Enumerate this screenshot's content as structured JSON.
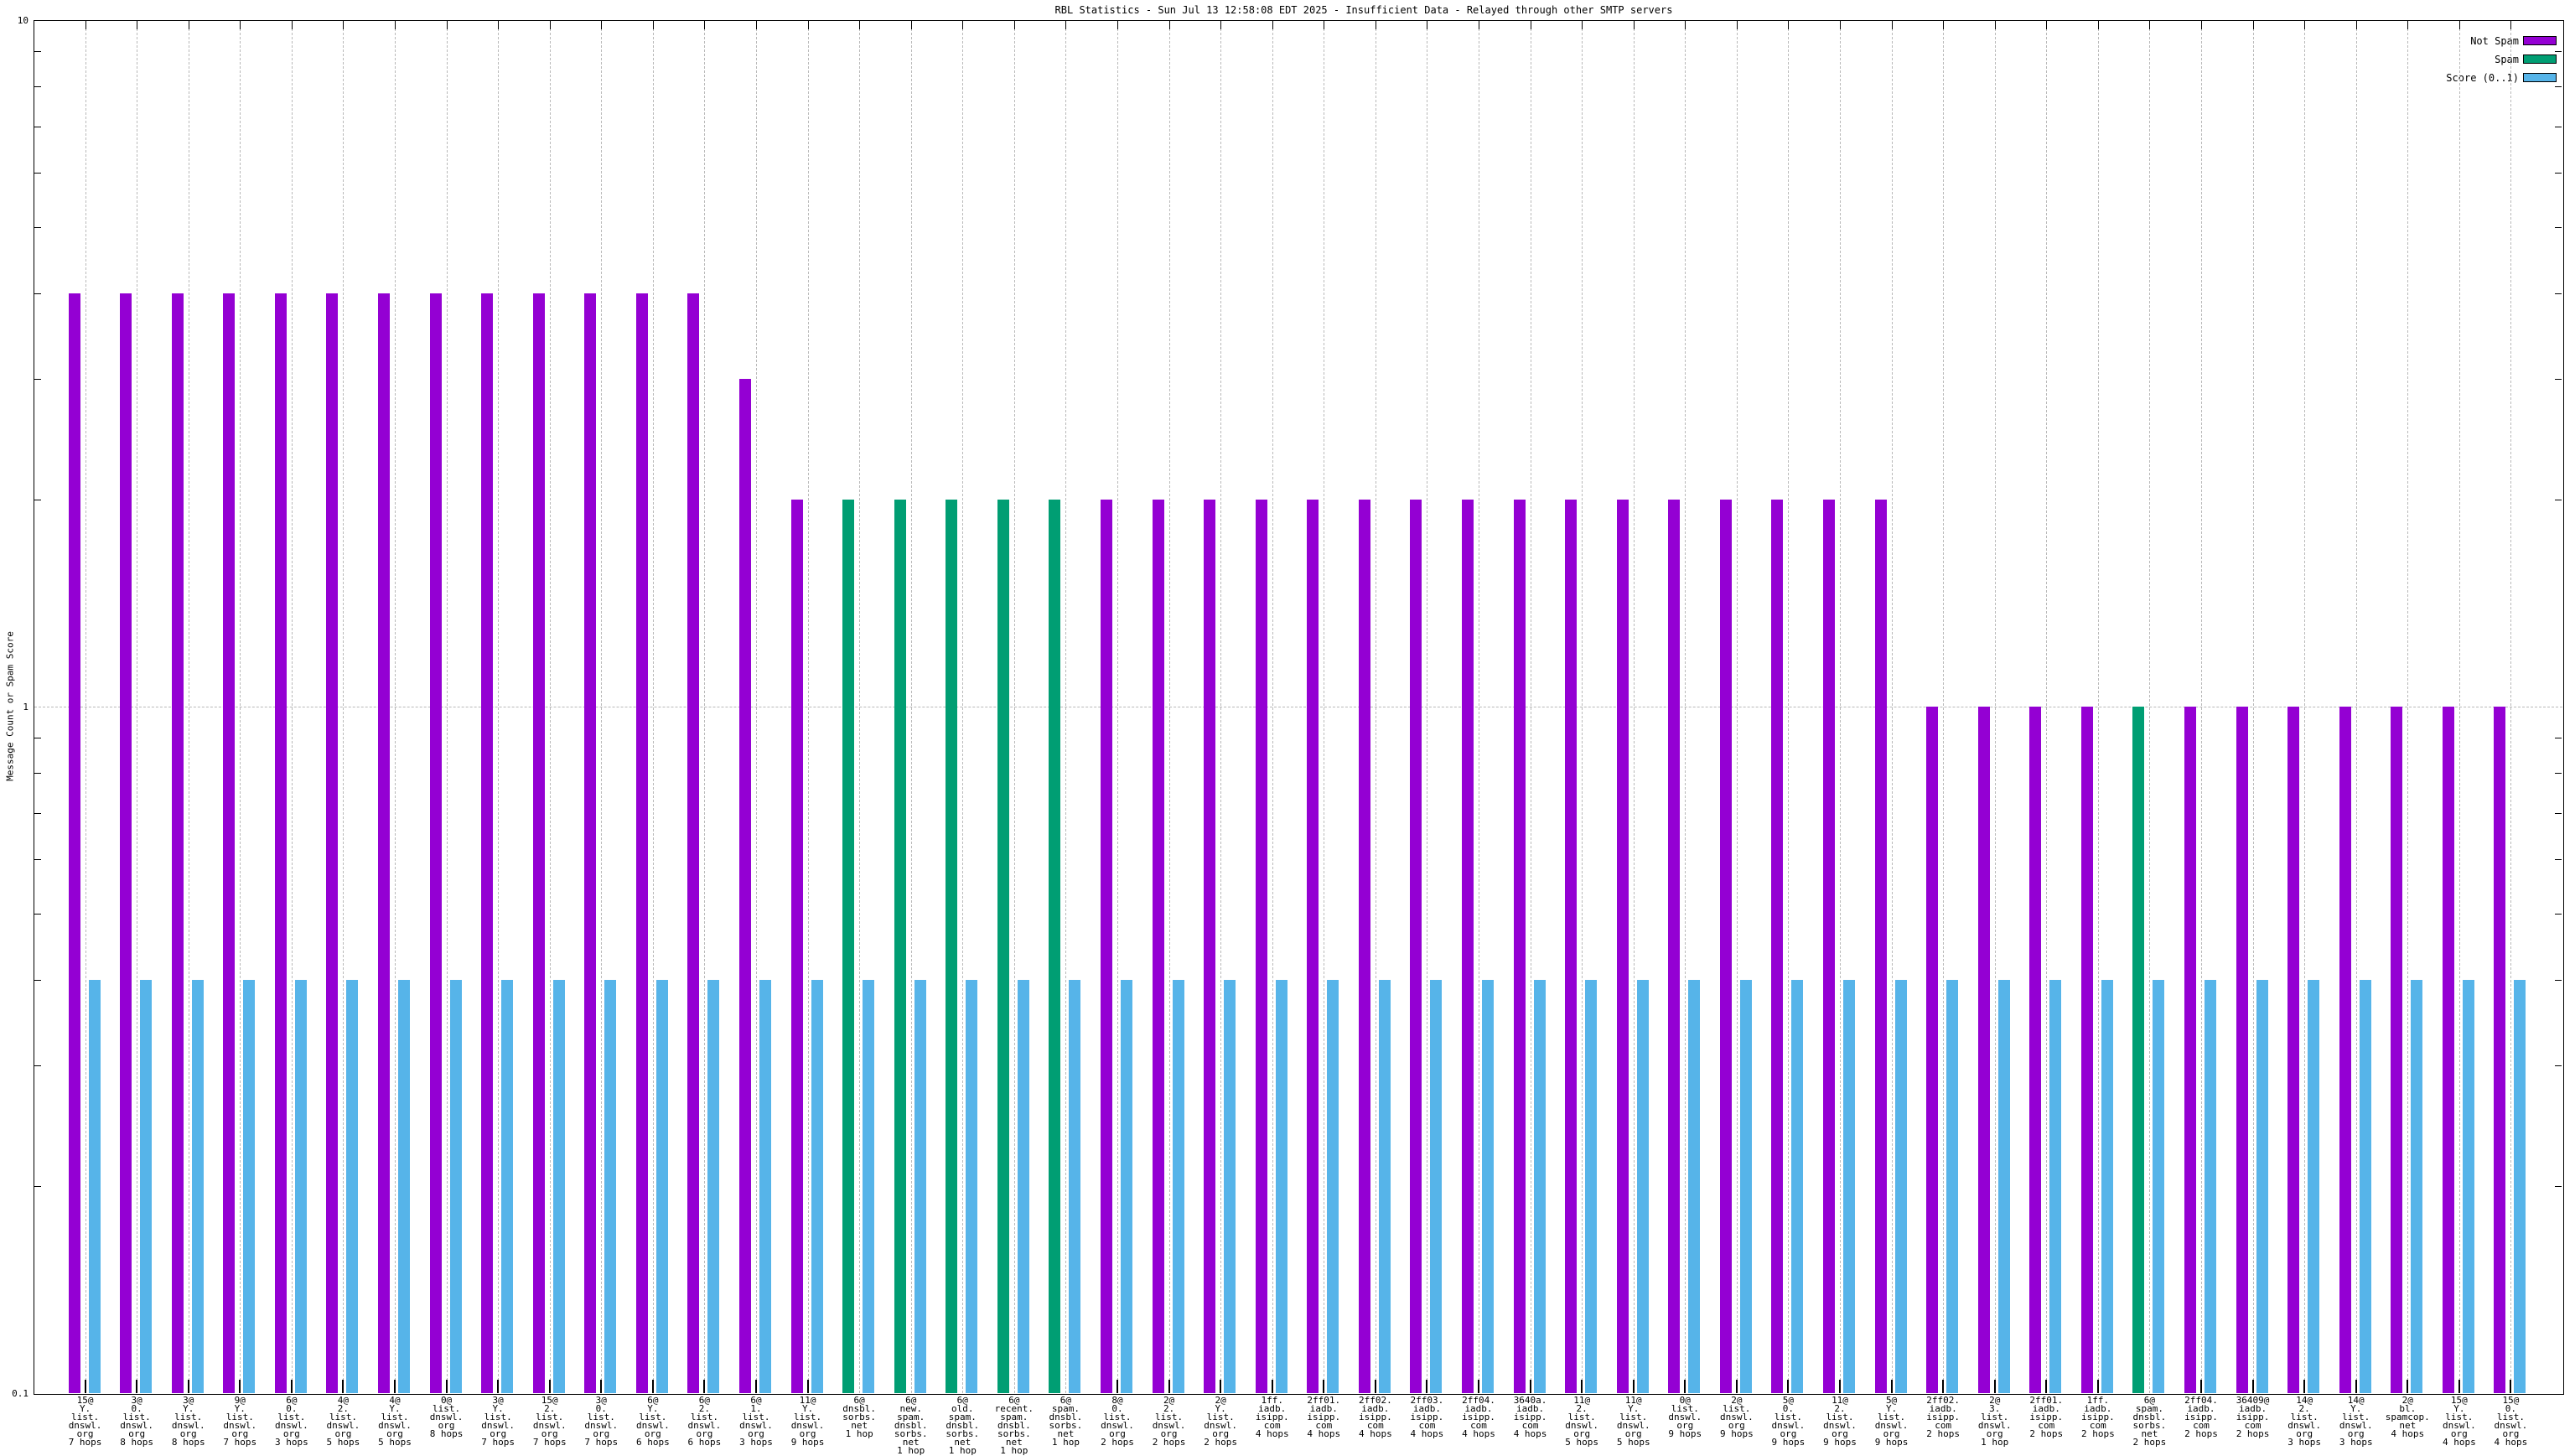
{
  "title": "RBL Statistics - Sun Jul 13 12:58:08 EDT 2025 - Insufficient Data - Relayed through other SMTP servers",
  "legend": [
    {
      "key": "notspam",
      "label": "Not Spam",
      "color": "#9400d3"
    },
    {
      "key": "spam",
      "label": "Spam",
      "color": "#009e73"
    },
    {
      "key": "score",
      "label": "Score (0..1)",
      "color": "#56b4e9"
    }
  ],
  "chart_data": {
    "type": "bar",
    "title": "RBL Statistics - Sun Jul 13 12:58:08 EDT 2025 - Insufficient Data - Relayed through other SMTP servers",
    "ylabel": "Message Count or Spam Score",
    "yscale": "log",
    "ylim": [
      0.1,
      10
    ],
    "ytick_labels": [
      "10",
      "1",
      "0.1"
    ],
    "grid": {
      "vertical_dashed_per_group": true,
      "horizontal_dashed_at": 1
    },
    "legend_position": "top-right",
    "colors": {
      "notspam": "#9400d3",
      "spam": "#009e73",
      "score": "#56b4e9",
      "grid": "#b9b9b9"
    },
    "series_names": [
      "Not Spam",
      "Spam",
      "Score (0..1)"
    ],
    "score_value_all_groups": 0.4,
    "groups": [
      {
        "label": "15@\nY.\nlist.\ndnswl.\norg\n7 hops",
        "type": "notspam",
        "count": 4,
        "score": 0.4
      },
      {
        "label": "3@\n0.\nlist.\ndnswl.\norg\n8 hops",
        "type": "notspam",
        "count": 4,
        "score": 0.4
      },
      {
        "label": "3@\nY.\nlist.\ndnswl.\norg\n8 hops",
        "type": "notspam",
        "count": 4,
        "score": 0.4
      },
      {
        "label": "9@\nY.\nlist.\ndnswl.\norg\n7 hops",
        "type": "notspam",
        "count": 4,
        "score": 0.4
      },
      {
        "label": "6@\n0.\nlist.\ndnswl.\norg\n3 hops",
        "type": "notspam",
        "count": 4,
        "score": 0.4
      },
      {
        "label": "4@\n2.\nlist.\ndnswl.\norg\n5 hops",
        "type": "notspam",
        "count": 4,
        "score": 0.4
      },
      {
        "label": "4@\nY.\nlist.\ndnswl.\norg\n5 hops",
        "type": "notspam",
        "count": 4,
        "score": 0.4
      },
      {
        "label": "0@\nlist.\ndnswl.\norg\n8 hops",
        "type": "notspam",
        "count": 4,
        "score": 0.4
      },
      {
        "label": "3@\nY.\nlist.\ndnswl.\norg\n7 hops",
        "type": "notspam",
        "count": 4,
        "score": 0.4
      },
      {
        "label": "15@\n2.\nlist.\ndnswl.\norg\n7 hops",
        "type": "notspam",
        "count": 4,
        "score": 0.4
      },
      {
        "label": "3@\n0.\nlist.\ndnswl.\norg\n7 hops",
        "type": "notspam",
        "count": 4,
        "score": 0.4
      },
      {
        "label": "6@\nY.\nlist.\ndnswl.\norg\n6 hops",
        "type": "notspam",
        "count": 4,
        "score": 0.4
      },
      {
        "label": "6@\n2.\nlist.\ndnswl.\norg\n6 hops",
        "type": "notspam",
        "count": 4,
        "score": 0.4
      },
      {
        "label": "6@\n1.\nlist.\ndnswl.\norg\n3 hops",
        "type": "notspam",
        "count": 3,
        "score": 0.4
      },
      {
        "label": "11@\nY.\nlist.\ndnswl.\norg\n9 hops",
        "type": "notspam",
        "count": 2,
        "score": 0.4
      },
      {
        "label": "6@\ndnsbl.\nsorbs.\nnet\n1 hop",
        "type": "spam",
        "count": 2,
        "score": 0.4
      },
      {
        "label": "6@\nnew.\nspam.\ndnsbl.\nsorbs.\nnet\n1 hop",
        "type": "spam",
        "count": 2,
        "score": 0.4
      },
      {
        "label": "6@\nold.\nspam.\ndnsbl.\nsorbs.\nnet\n1 hop",
        "type": "spam",
        "count": 2,
        "score": 0.4
      },
      {
        "label": "6@\nrecent.\nspam.\ndnsbl.\nsorbs.\nnet\n1 hop",
        "type": "spam",
        "count": 2,
        "score": 0.4
      },
      {
        "label": "6@\nspam.\ndnsbl.\nsorbs.\nnet\n1 hop",
        "type": "spam",
        "count": 2,
        "score": 0.4
      },
      {
        "label": "8@\n0.\nlist.\ndnswl.\norg\n2 hops",
        "type": "notspam",
        "count": 2,
        "score": 0.4
      },
      {
        "label": "2@\n2.\nlist.\ndnswl.\norg\n2 hops",
        "type": "notspam",
        "count": 2,
        "score": 0.4
      },
      {
        "label": "2@\nY.\nlist.\ndnswl.\norg\n2 hops",
        "type": "notspam",
        "count": 2,
        "score": 0.4
      },
      {
        "label": "1ff.\niadb.\nisipp.\ncom\n4 hops",
        "type": "notspam",
        "count": 2,
        "score": 0.4
      },
      {
        "label": "2ff01.\niadb.\nisipp.\ncom\n4 hops",
        "type": "notspam",
        "count": 2,
        "score": 0.4
      },
      {
        "label": "2ff02.\niadb.\nisipp.\ncom\n4 hops",
        "type": "notspam",
        "count": 2,
        "score": 0.4
      },
      {
        "label": "2ff03.\niadb.\nisipp.\ncom\n4 hops",
        "type": "notspam",
        "count": 2,
        "score": 0.4
      },
      {
        "label": "2ff04.\niadb.\nisipp.\ncom\n4 hops",
        "type": "notspam",
        "count": 2,
        "score": 0.4
      },
      {
        "label": "3640a.\niadb.\nisipp.\ncom\n4 hops",
        "type": "notspam",
        "count": 2,
        "score": 0.4
      },
      {
        "label": "11@\n2.\nlist.\ndnswl.\norg\n5 hops",
        "type": "notspam",
        "count": 2,
        "score": 0.4
      },
      {
        "label": "11@\nY.\nlist.\ndnswl.\norg\n5 hops",
        "type": "notspam",
        "count": 2,
        "score": 0.4
      },
      {
        "label": "0@\nlist.\ndnswl.\norg\n9 hops",
        "type": "notspam",
        "count": 2,
        "score": 0.4
      },
      {
        "label": "2@\nlist.\ndnswl.\norg\n9 hops",
        "type": "notspam",
        "count": 2,
        "score": 0.4
      },
      {
        "label": "5@\n0.\nlist.\ndnswl.\norg\n9 hops",
        "type": "notspam",
        "count": 2,
        "score": 0.4
      },
      {
        "label": "11@\n2.\nlist.\ndnswl.\norg\n9 hops",
        "type": "notspam",
        "count": 2,
        "score": 0.4
      },
      {
        "label": "5@\nY.\nlist.\ndnswl.\norg\n9 hops",
        "type": "notspam",
        "count": 2,
        "score": 0.4
      },
      {
        "label": "2ff02.\niadb.\nisipp.\ncom\n2 hops",
        "type": "notspam",
        "count": 1,
        "score": 0.4
      },
      {
        "label": "2@\n3.\nlist.\ndnswl.\norg\n1 hop",
        "type": "notspam",
        "count": 1,
        "score": 0.4
      },
      {
        "label": "2ff01.\niadb.\nisipp.\ncom\n2 hops",
        "type": "notspam",
        "count": 1,
        "score": 0.4
      },
      {
        "label": "1ff.\niadb.\nisipp.\ncom\n2 hops",
        "type": "notspam",
        "count": 1,
        "score": 0.4
      },
      {
        "label": "6@\nspam.\ndnsbl.\nsorbs.\nnet\n2 hops",
        "type": "spam",
        "count": 1,
        "score": 0.4
      },
      {
        "label": "2ff04.\niadb.\nisipp.\ncom\n2 hops",
        "type": "notspam",
        "count": 1,
        "score": 0.4
      },
      {
        "label": "36409@\niadb.\nisipp.\ncom\n2 hops",
        "type": "notspam",
        "count": 1,
        "score": 0.4
      },
      {
        "label": "14@\n2.\nlist.\ndnswl.\norg\n3 hops",
        "type": "notspam",
        "count": 1,
        "score": 0.4
      },
      {
        "label": "14@\nY.\nlist.\ndnswl.\norg\n3 hops",
        "type": "notspam",
        "count": 1,
        "score": 0.4
      },
      {
        "label": "2@\nbl.\nspamcop.\nnet\n4 hops",
        "type": "notspam",
        "count": 1,
        "score": 0.4
      },
      {
        "label": "15@\nY.\nlist.\ndnswl.\norg\n4 hops",
        "type": "notspam",
        "count": 1,
        "score": 0.4
      },
      {
        "label": "15@\n0.\nlist.\ndnswl.\norg\n4 hops",
        "type": "notspam",
        "count": 1,
        "score": 0.4
      }
    ]
  }
}
